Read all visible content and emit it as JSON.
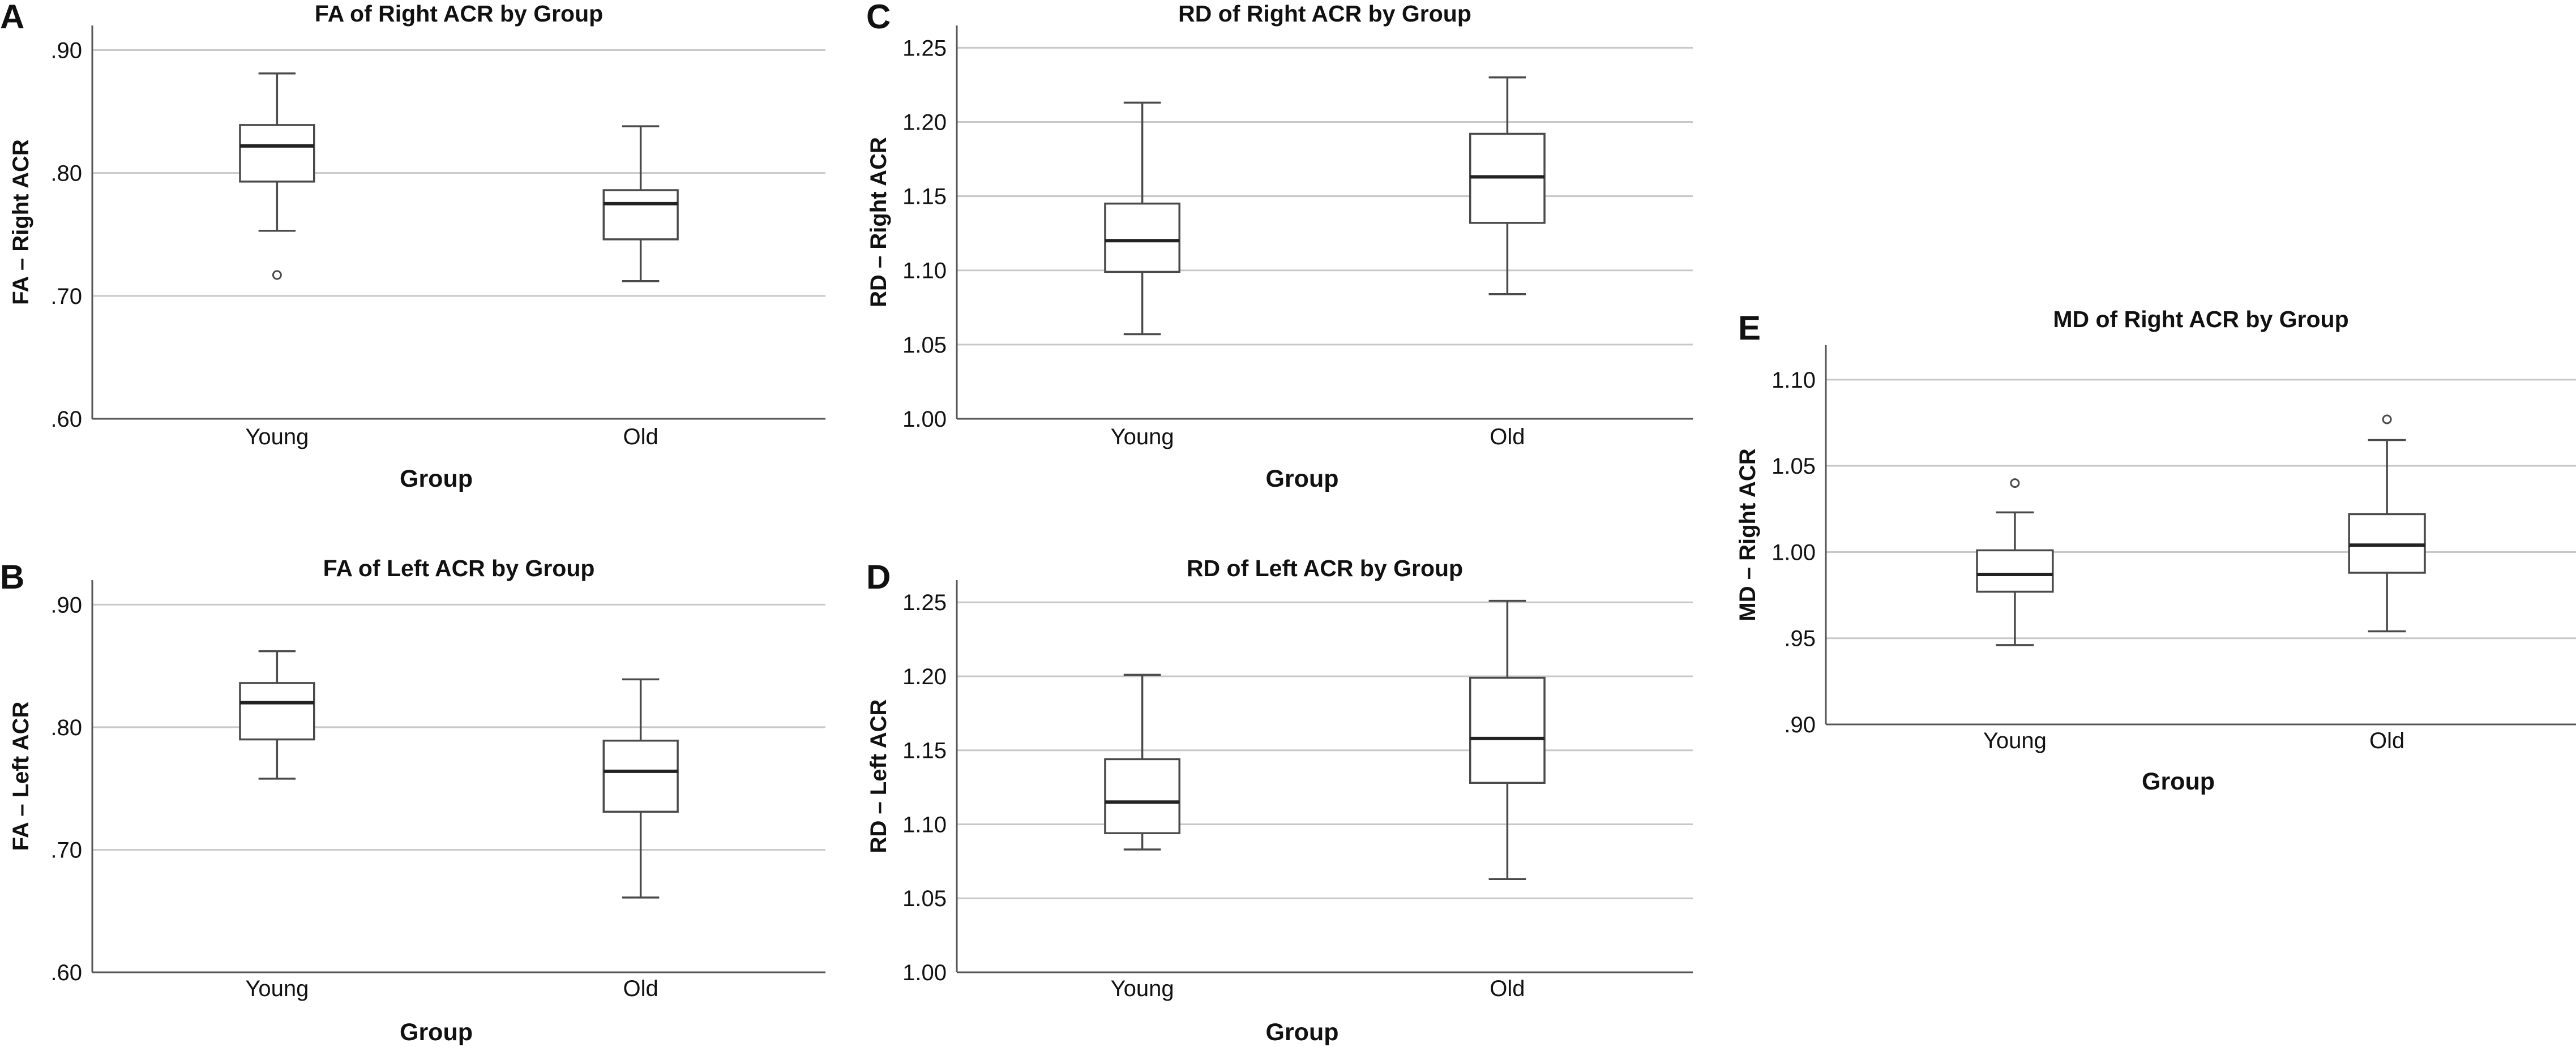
{
  "chart_data": [
    {
      "type": "boxplot",
      "panel": "A",
      "title": "FA of Right ACR by Group",
      "xlabel": "Group",
      "ylabel": "FA – Right ACR",
      "ylim": [
        0.6,
        0.92
      ],
      "yticks": [
        0.6,
        0.7,
        0.8,
        0.9
      ],
      "ytick_labels": [
        ".60",
        ".70",
        ".80",
        ".90"
      ],
      "grid": true,
      "categories": [
        "Young",
        "Old"
      ],
      "boxes": [
        {
          "group": "Young",
          "whisker_low": 0.753,
          "q1": 0.793,
          "median": 0.822,
          "q3": 0.839,
          "whisker_high": 0.881,
          "outliers": [
            0.717
          ]
        },
        {
          "group": "Old",
          "whisker_low": 0.712,
          "q1": 0.746,
          "median": 0.775,
          "q3": 0.786,
          "whisker_high": 0.838,
          "outliers": []
        }
      ]
    },
    {
      "type": "boxplot",
      "panel": "B",
      "title": "FA of Left ACR by Group",
      "xlabel": "Group",
      "ylabel": "FA – Left ACR",
      "ylim": [
        0.6,
        0.92
      ],
      "yticks": [
        0.6,
        0.7,
        0.8,
        0.9
      ],
      "ytick_labels": [
        ".60",
        ".70",
        ".80",
        ".90"
      ],
      "grid": true,
      "categories": [
        "Young",
        "Old"
      ],
      "boxes": [
        {
          "group": "Young",
          "whisker_low": 0.758,
          "q1": 0.79,
          "median": 0.82,
          "q3": 0.836,
          "whisker_high": 0.862,
          "outliers": []
        },
        {
          "group": "Old",
          "whisker_low": 0.661,
          "q1": 0.731,
          "median": 0.764,
          "q3": 0.789,
          "whisker_high": 0.839,
          "outliers": []
        }
      ]
    },
    {
      "type": "boxplot",
      "panel": "C",
      "title": "RD of Right ACR by Group",
      "xlabel": "Group",
      "ylabel": "RD – Right ACR",
      "ylim": [
        1.0,
        1.265
      ],
      "yticks": [
        1.0,
        1.05,
        1.1,
        1.15,
        1.2,
        1.25
      ],
      "ytick_labels": [
        "1.00",
        "1.05",
        "1.10",
        "1.15",
        "1.20",
        "1.25"
      ],
      "grid": true,
      "categories": [
        "Young",
        "Old"
      ],
      "boxes": [
        {
          "group": "Young",
          "whisker_low": 1.057,
          "q1": 1.099,
          "median": 1.12,
          "q3": 1.145,
          "whisker_high": 1.213,
          "outliers": []
        },
        {
          "group": "Old",
          "whisker_low": 1.084,
          "q1": 1.132,
          "median": 1.163,
          "q3": 1.192,
          "whisker_high": 1.23,
          "outliers": []
        }
      ]
    },
    {
      "type": "boxplot",
      "panel": "D",
      "title": "RD of Left ACR by Group",
      "xlabel": "Group",
      "ylabel": "RD – Left ACR",
      "ylim": [
        1.0,
        1.265
      ],
      "yticks": [
        1.0,
        1.05,
        1.1,
        1.15,
        1.2,
        1.25
      ],
      "ytick_labels": [
        "1.00",
        "1.05",
        "1.10",
        "1.15",
        "1.20",
        "1.25"
      ],
      "grid": true,
      "categories": [
        "Young",
        "Old"
      ],
      "boxes": [
        {
          "group": "Young",
          "whisker_low": 1.083,
          "q1": 1.094,
          "median": 1.115,
          "q3": 1.144,
          "whisker_high": 1.201,
          "outliers": []
        },
        {
          "group": "Old",
          "whisker_low": 1.063,
          "q1": 1.128,
          "median": 1.158,
          "q3": 1.199,
          "whisker_high": 1.251,
          "outliers": []
        }
      ]
    },
    {
      "type": "boxplot",
      "panel": "E",
      "title": "MD of Right ACR by Group",
      "xlabel": "Group",
      "ylabel": "MD – Right ACR",
      "ylim": [
        0.9,
        1.12
      ],
      "yticks": [
        0.9,
        0.95,
        1.0,
        1.05,
        1.1
      ],
      "ytick_labels": [
        ".90",
        ".95",
        "1.00",
        "1.05",
        "1.10"
      ],
      "grid": true,
      "categories": [
        "Young",
        "Old"
      ],
      "boxes": [
        {
          "group": "Young",
          "whisker_low": 0.946,
          "q1": 0.977,
          "median": 0.987,
          "q3": 1.001,
          "whisker_high": 1.023,
          "outliers": [
            1.04
          ]
        },
        {
          "group": "Old",
          "whisker_low": 0.954,
          "q1": 0.988,
          "median": 1.004,
          "q3": 1.022,
          "whisker_high": 1.065,
          "outliers": [
            1.077
          ]
        }
      ]
    }
  ]
}
